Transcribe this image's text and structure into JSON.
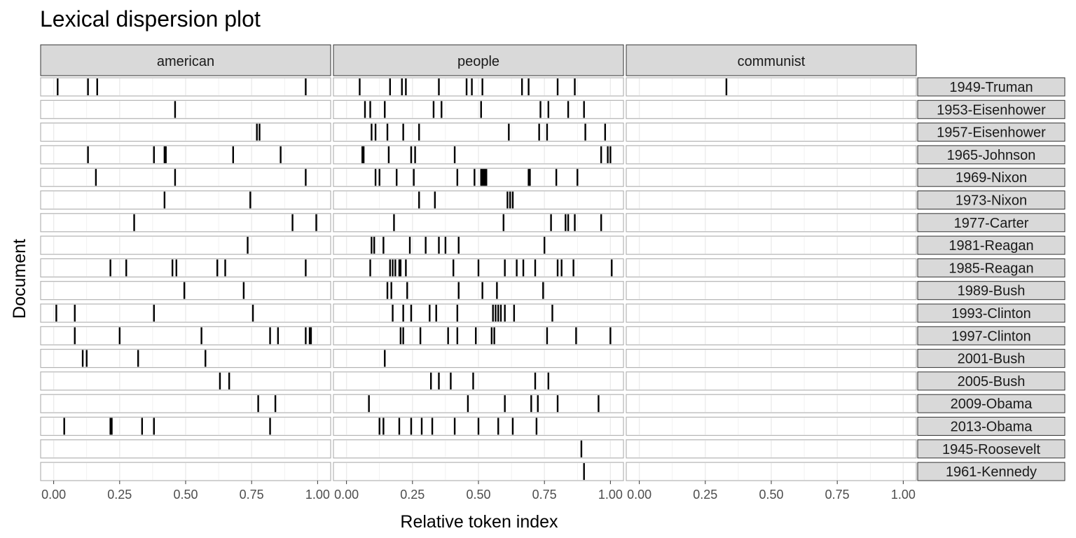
{
  "chart_data": {
    "type": "scatter",
    "title": "Lexical dispersion plot",
    "xlabel": "Relative token index",
    "ylabel": "Document",
    "xlim": [
      0,
      1
    ],
    "x_ticks": [
      "0.00",
      "0.25",
      "0.50",
      "0.75",
      "1.00"
    ],
    "grid": true,
    "keywords": [
      "american",
      "people",
      "communist"
    ],
    "documents": [
      "1949-Truman",
      "1953-Eisenhower",
      "1957-Eisenhower",
      "1965-Johnson",
      "1969-Nixon",
      "1973-Nixon",
      "1977-Carter",
      "1981-Reagan",
      "1985-Reagan",
      "1989-Bush",
      "1993-Clinton",
      "1997-Clinton",
      "2001-Bush",
      "2005-Bush",
      "2009-Obama",
      "2013-Obama",
      "1945-Roosevelt",
      "1961-Kennedy"
    ],
    "occurrences": {
      "american": [
        [
          0.015,
          0.13,
          0.165,
          0.955
        ],
        [
          0.46
        ],
        [
          0.77,
          0.78
        ],
        [
          0.13,
          0.38,
          0.42,
          0.425,
          0.68,
          0.86
        ],
        [
          0.16,
          0.46,
          0.955
        ],
        [
          0.42,
          0.745
        ],
        [
          0.305,
          0.905,
          0.995
        ],
        [
          0.735
        ],
        [
          0.215,
          0.275,
          0.45,
          0.465,
          0.62,
          0.65,
          0.955
        ],
        [
          0.495,
          0.72
        ],
        [
          0.01,
          0.08,
          0.38,
          0.755
        ],
        [
          0.08,
          0.25,
          0.56,
          0.82,
          0.85,
          0.955,
          0.97,
          0.975
        ],
        [
          0.11,
          0.125,
          0.32,
          0.575
        ],
        [
          0.63,
          0.665
        ],
        [
          0.775,
          0.84
        ],
        [
          0.04,
          0.215,
          0.22,
          0.335,
          0.38,
          0.82
        ],
        [],
        []
      ],
      "people": [
        [
          0.05,
          0.165,
          0.21,
          0.225,
          0.35,
          0.455,
          0.475,
          0.515,
          0.665,
          0.69,
          0.8,
          0.865
        ],
        [
          0.07,
          0.09,
          0.145,
          0.33,
          0.36,
          0.51,
          0.735,
          0.765,
          0.84,
          0.9
        ],
        [
          0.095,
          0.11,
          0.155,
          0.215,
          0.275,
          0.615,
          0.73,
          0.76,
          0.905,
          0.98
        ],
        [
          0.06,
          0.065,
          0.16,
          0.245,
          0.26,
          0.41,
          0.965,
          0.99,
          1.0
        ],
        [
          0.11,
          0.125,
          0.19,
          0.255,
          0.42,
          0.485,
          0.51,
          0.515,
          0.52,
          0.525,
          0.53,
          0.69,
          0.695,
          0.795,
          0.875
        ],
        [
          0.275,
          0.335,
          0.61,
          0.62,
          0.63
        ],
        [
          0.18,
          0.595,
          0.775,
          0.83,
          0.84,
          0.865,
          0.965
        ],
        [
          0.095,
          0.105,
          0.14,
          0.24,
          0.3,
          0.35,
          0.375,
          0.425,
          0.75
        ],
        [
          0.09,
          0.165,
          0.175,
          0.185,
          0.2,
          0.205,
          0.225,
          0.405,
          0.5,
          0.6,
          0.645,
          0.67,
          0.715,
          0.8,
          0.815,
          0.86,
          1.005
        ],
        [
          0.155,
          0.17,
          0.23,
          0.425,
          0.515,
          0.57,
          0.745
        ],
        [
          0.175,
          0.215,
          0.245,
          0.315,
          0.34,
          0.42,
          0.555,
          0.565,
          0.575,
          0.585,
          0.6,
          0.635,
          0.78
        ],
        [
          0.205,
          0.215,
          0.28,
          0.385,
          0.42,
          0.49,
          0.55,
          0.56,
          0.76,
          0.87,
          1.0
        ],
        [
          0.145
        ],
        [
          0.32,
          0.35,
          0.395,
          0.48,
          0.715,
          0.765
        ],
        [
          0.085,
          0.46,
          0.6,
          0.7,
          0.725,
          0.8,
          0.955
        ],
        [
          0.125,
          0.14,
          0.2,
          0.245,
          0.285,
          0.325,
          0.41,
          0.5,
          0.575,
          0.63,
          0.72
        ],
        [
          0.89
        ],
        [
          0.9
        ]
      ],
      "communist": [
        [
          0.33
        ],
        [],
        [],
        [],
        [],
        [],
        [],
        [],
        [],
        [],
        [],
        [],
        [],
        [],
        [],
        [],
        [],
        []
      ]
    }
  }
}
